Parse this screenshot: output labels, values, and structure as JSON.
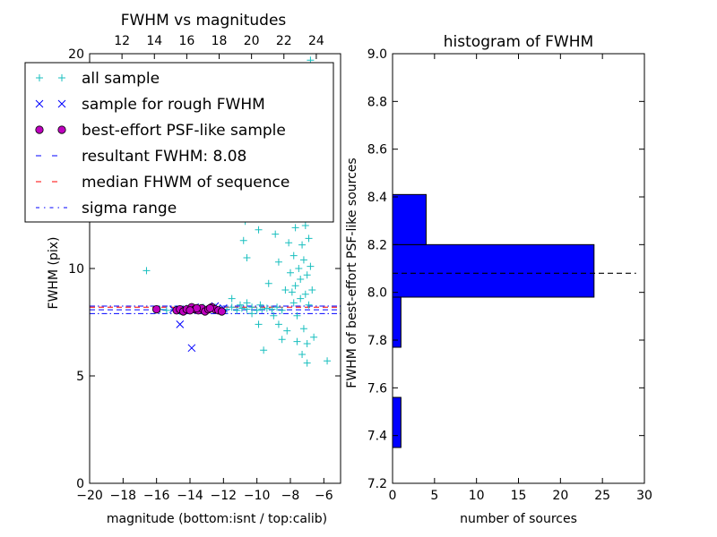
{
  "chart_data": [
    {
      "type": "scatter",
      "title": "FWHM vs magnitudes",
      "xlabel": "magnitude (bottom:isnt / top:calib)",
      "ylabel": "FWHM (pix)",
      "xlim": [
        -20,
        -5
      ],
      "ylim": [
        0,
        20
      ],
      "xticks": [
        -20,
        -18,
        -16,
        -14,
        -12,
        -10,
        -8,
        -6
      ],
      "xtick_labels": [
        "−20",
        "−18",
        "−16",
        "−14",
        "−12",
        "−10",
        "−8",
        "−6"
      ],
      "yticks": [
        0,
        5,
        10
      ],
      "ytick_labels": [
        "0",
        "5",
        "10"
      ],
      "top_axis": {
        "xlim": [
          10,
          25.5
        ],
        "ticks": [
          12,
          14,
          16,
          18,
          20,
          22,
          24
        ],
        "tick_labels": [
          "12",
          "14",
          "16",
          "18",
          "20",
          "22",
          "24"
        ]
      },
      "top_ytick_label": "20",
      "legend": {
        "placement": "upper-left",
        "entries": [
          {
            "label": "all sample",
            "marker": "plus",
            "color": "#19bfbf"
          },
          {
            "label": "sample for rough FWHM",
            "marker": "x",
            "color": "#0000ff"
          },
          {
            "label": "best-effort PSF-like sample",
            "marker": "circle",
            "color": "#bf00bf"
          },
          {
            "label": "resultant FWHM: 8.08",
            "marker": "dashed",
            "color": "#0000ff"
          },
          {
            "label": "median FHWM of sequence",
            "marker": "dashed",
            "color": "#ff0000"
          },
          {
            "label": "sigma range",
            "marker": "dashdot",
            "color": "#0000ff"
          }
        ]
      },
      "lines": {
        "resultant_fwhm": 8.08,
        "median_fwhm": 8.2,
        "sigma_range": [
          7.9,
          8.25
        ]
      },
      "series": [
        {
          "name": "all sample",
          "marker": "+",
          "color": "#19bfbf",
          "points": [
            [
              -16.6,
              9.9
            ],
            [
              -15.8,
              8.1
            ],
            [
              -15.4,
              8.05
            ],
            [
              -14.9,
              8.1
            ],
            [
              -14.6,
              8.0
            ],
            [
              -14.2,
              8.15
            ],
            [
              -13.9,
              8.05
            ],
            [
              -13.6,
              8.1
            ],
            [
              -13.2,
              8.2
            ],
            [
              -12.9,
              8.1
            ],
            [
              -12.5,
              8.2
            ],
            [
              -12.2,
              8.15
            ],
            [
              -11.8,
              8.1
            ],
            [
              -11.5,
              8.2
            ],
            [
              -11.2,
              8.05
            ],
            [
              -10.9,
              8.15
            ],
            [
              -10.6,
              8.1
            ],
            [
              -10.3,
              8.2
            ],
            [
              -10.0,
              8.05
            ],
            [
              -9.7,
              8.1
            ],
            [
              -9.4,
              8.15
            ],
            [
              -9.1,
              8.1
            ],
            [
              -8.8,
              8.2
            ],
            [
              -8.5,
              8.05
            ],
            [
              -11.5,
              8.6
            ],
            [
              -11.0,
              8.3
            ],
            [
              -10.6,
              8.4
            ],
            [
              -10.3,
              7.9
            ],
            [
              -9.8,
              8.3
            ],
            [
              -10.8,
              11.3
            ],
            [
              -10.7,
              12.2
            ],
            [
              -10.6,
              10.5
            ],
            [
              -10.4,
              13.4
            ],
            [
              -10.1,
              12.9
            ],
            [
              -9.9,
              11.8
            ],
            [
              -9.6,
              12.5
            ],
            [
              -9.9,
              7.4
            ],
            [
              -9.6,
              6.2
            ],
            [
              -9.3,
              9.3
            ],
            [
              -9.0,
              7.8
            ],
            [
              -8.9,
              11.6
            ],
            [
              -8.7,
              7.4
            ],
            [
              -8.7,
              10.3
            ],
            [
              -8.5,
              6.7
            ],
            [
              -8.3,
              9.0
            ],
            [
              -8.2,
              7.1
            ],
            [
              -8.1,
              11.2
            ],
            [
              -8.0,
              9.8
            ],
            [
              -8.0,
              12.8
            ],
            [
              -7.9,
              8.9
            ],
            [
              -7.9,
              13.8
            ],
            [
              -7.8,
              10.6
            ],
            [
              -7.8,
              19.0
            ],
            [
              -7.7,
              9.2
            ],
            [
              -7.7,
              11.9
            ],
            [
              -7.6,
              14.3
            ],
            [
              -7.6,
              7.8
            ],
            [
              -7.5,
              10.0
            ],
            [
              -7.5,
              12.4
            ],
            [
              -7.4,
              8.6
            ],
            [
              -7.4,
              9.5
            ],
            [
              -7.3,
              11.1
            ],
            [
              -7.3,
              13.1
            ],
            [
              -7.2,
              7.2
            ],
            [
              -7.2,
              10.4
            ],
            [
              -7.1,
              8.8
            ],
            [
              -7.1,
              12.0
            ],
            [
              -7.0,
              9.7
            ],
            [
              -7.0,
              6.5
            ],
            [
              -6.9,
              11.4
            ],
            [
              -6.9,
              8.3
            ],
            [
              -6.8,
              10.1
            ],
            [
              -6.8,
              19.7
            ],
            [
              -6.7,
              12.6
            ],
            [
              -6.7,
              9.0
            ],
            [
              -7.6,
              6.6
            ],
            [
              -7.3,
              6.0
            ],
            [
              -7.0,
              5.6
            ],
            [
              -6.6,
              6.8
            ],
            [
              -5.8,
              5.7
            ],
            [
              -7.8,
              8.4
            ],
            [
              -7.4,
              14.9
            ]
          ]
        },
        {
          "name": "sample for rough FWHM",
          "marker": "x",
          "color": "#0000ff",
          "points": [
            [
              -14.6,
              7.4
            ],
            [
              -13.9,
              6.3
            ],
            [
              -12.5,
              8.25
            ],
            [
              -13.3,
              8.1
            ],
            [
              -14.2,
              8.05
            ],
            [
              -15.0,
              8.1
            ],
            [
              -12.0,
              8.15
            ],
            [
              -13.7,
              8.2
            ]
          ]
        },
        {
          "name": "best-effort PSF-like sample",
          "marker": "o",
          "color": "#bf00bf",
          "points": [
            [
              -16.0,
              8.1
            ],
            [
              -14.8,
              8.05
            ],
            [
              -14.6,
              8.1
            ],
            [
              -14.4,
              8.0
            ],
            [
              -14.2,
              8.1
            ],
            [
              -13.9,
              8.2
            ],
            [
              -13.7,
              8.1
            ],
            [
              -13.5,
              8.05
            ],
            [
              -13.3,
              8.15
            ],
            [
              -13.1,
              8.0
            ],
            [
              -12.9,
              8.1
            ],
            [
              -12.7,
              8.2
            ],
            [
              -12.5,
              8.1
            ],
            [
              -12.3,
              8.05
            ],
            [
              -12.1,
              8.0
            ],
            [
              -13.6,
              8.15
            ],
            [
              -14.0,
              8.05
            ],
            [
              -12.8,
              8.15
            ]
          ]
        }
      ]
    },
    {
      "type": "bar",
      "orientation": "horizontal",
      "title": "histogram of FWHM",
      "xlabel": "number of sources",
      "ylabel": "FWHM of best-effort PSF-like sources",
      "xlim": [
        0,
        30
      ],
      "ylim": [
        7.2,
        9.0
      ],
      "xticks": [
        0,
        5,
        10,
        15,
        20,
        25,
        30
      ],
      "xtick_labels": [
        "0",
        "5",
        "10",
        "15",
        "20",
        "25",
        "30"
      ],
      "yticks": [
        7.2,
        7.4,
        7.6,
        7.8,
        8.0,
        8.2,
        8.4,
        8.6,
        8.8,
        9.0
      ],
      "ytick_labels": [
        "7.2",
        "7.4",
        "7.6",
        "7.8",
        "8.0",
        "8.2",
        "8.4",
        "8.6",
        "8.8",
        "9.0"
      ],
      "bar_color": "#0000ff",
      "bins": [
        {
          "low": 7.35,
          "high": 7.56,
          "count": 1
        },
        {
          "low": 7.56,
          "high": 7.77,
          "count": 0
        },
        {
          "low": 7.77,
          "high": 7.98,
          "count": 1
        },
        {
          "low": 7.98,
          "high": 8.2,
          "count": 24
        },
        {
          "low": 8.2,
          "high": 8.41,
          "count": 4
        }
      ],
      "reference_line": {
        "value": 8.08,
        "style": "dashed",
        "color": "#000000",
        "x_extent": [
          0,
          29
        ]
      }
    }
  ]
}
